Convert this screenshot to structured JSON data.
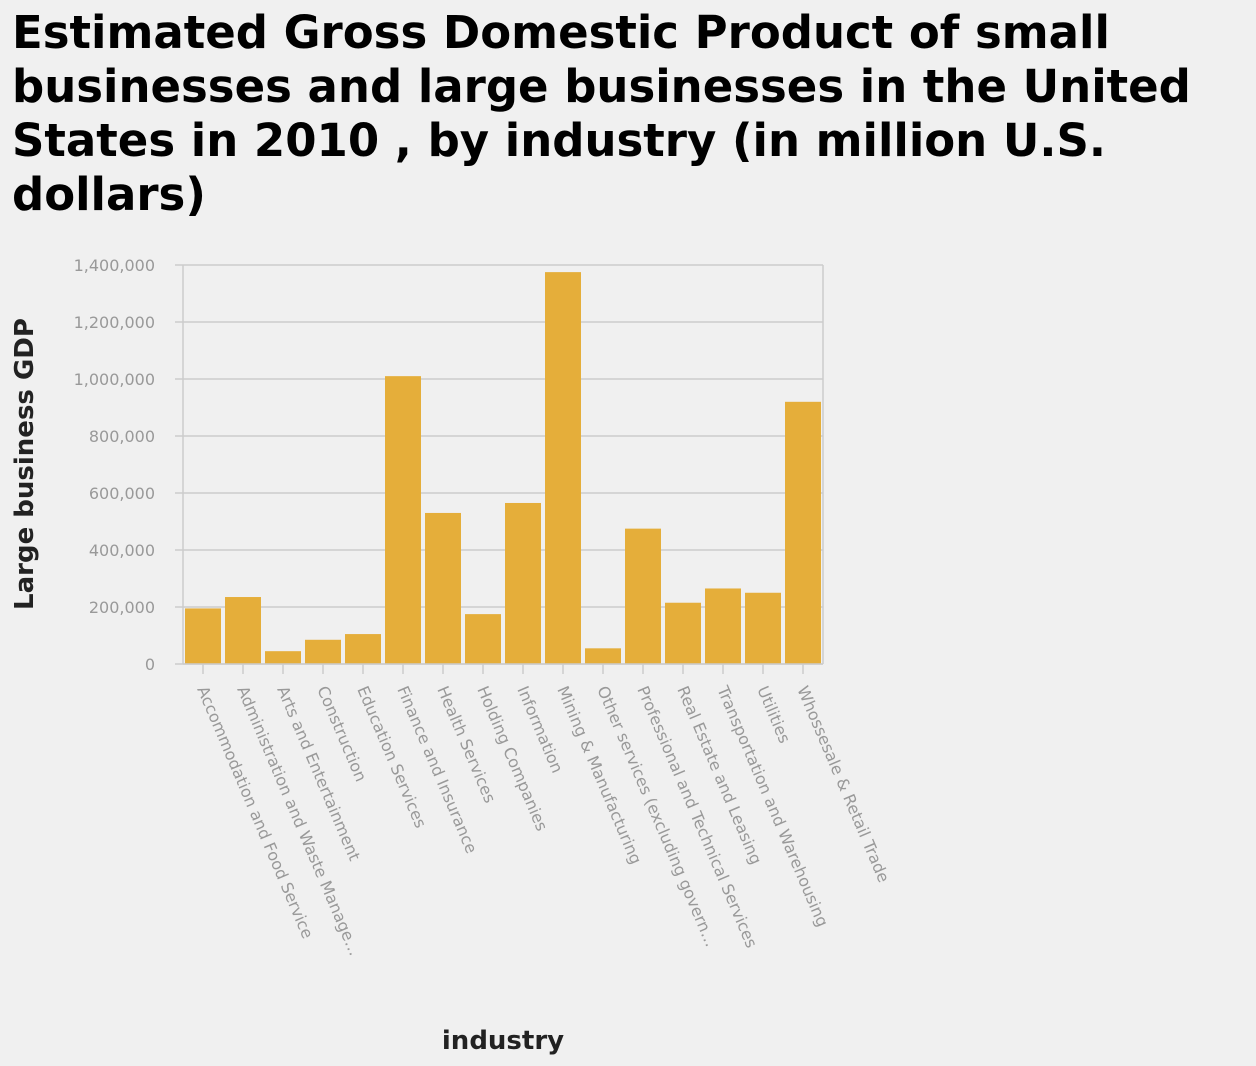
{
  "chart_data": {
    "type": "bar",
    "title": "Estimated Gross Domestic Product of small businesses and large businesses in the United States in 2010 , by industry (in million U.S. dollars)",
    "xlabel": "industry",
    "ylabel": "Large business GDP",
    "ylim": [
      0,
      1400000
    ],
    "yticks": [
      0,
      200000,
      400000,
      600000,
      800000,
      1000000,
      1200000,
      1400000
    ],
    "ytick_labels": [
      "0",
      "200,000",
      "400,000",
      "600,000",
      "800,000",
      "1,000,000",
      "1,200,000",
      "1,400,000"
    ],
    "grid": true,
    "categories": [
      "Accommodation and Food Service",
      "Administration and Waste Manage…",
      "Arts and Entertainment",
      "Construction",
      "Education Services",
      "Finance and Insurance",
      "Health Services",
      "Holding Companies",
      "Information",
      "Mining & Manufacturing",
      "Other services (excluding govern…",
      "Professional and Technical Services",
      "Real Estate and Leasing",
      "Transportation and Warehousing",
      "Utilities",
      "Whossesale & Retail Trade"
    ],
    "values": [
      195000,
      235000,
      45000,
      85000,
      105000,
      1010000,
      530000,
      175000,
      565000,
      1375000,
      55000,
      475000,
      215000,
      265000,
      250000,
      920000
    ],
    "colors": {
      "bar": "#e5ae3a",
      "grid": "#cccccc",
      "tick_label": "#999999",
      "axis_title": "#222222"
    }
  }
}
